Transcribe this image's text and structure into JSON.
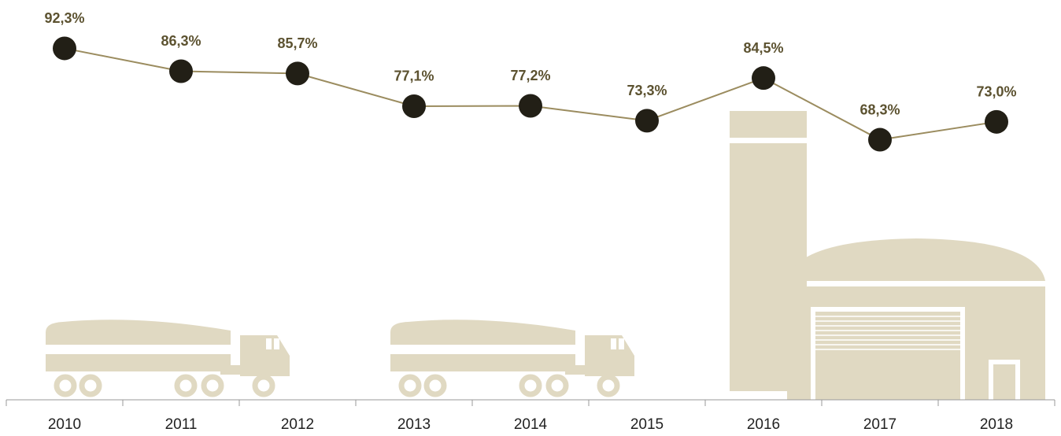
{
  "chart_data": {
    "type": "line",
    "categories": [
      "2010",
      "2011",
      "2012",
      "2013",
      "2014",
      "2015",
      "2016",
      "2017",
      "2018"
    ],
    "series": [
      {
        "color": "#9b8c5f",
        "values": [
          92.3,
          86.3,
          85.7,
          77.1,
          77.2,
          73.3,
          84.5,
          68.3,
          73.0
        ],
        "value_labels": [
          "92,3%",
          "86,3%",
          "85,7%",
          "77,1%",
          "77,2%",
          "73,3%",
          "84,5%",
          "68,3%",
          "73,0%"
        ]
      }
    ],
    "ylim": [
      0,
      105
    ]
  }
}
